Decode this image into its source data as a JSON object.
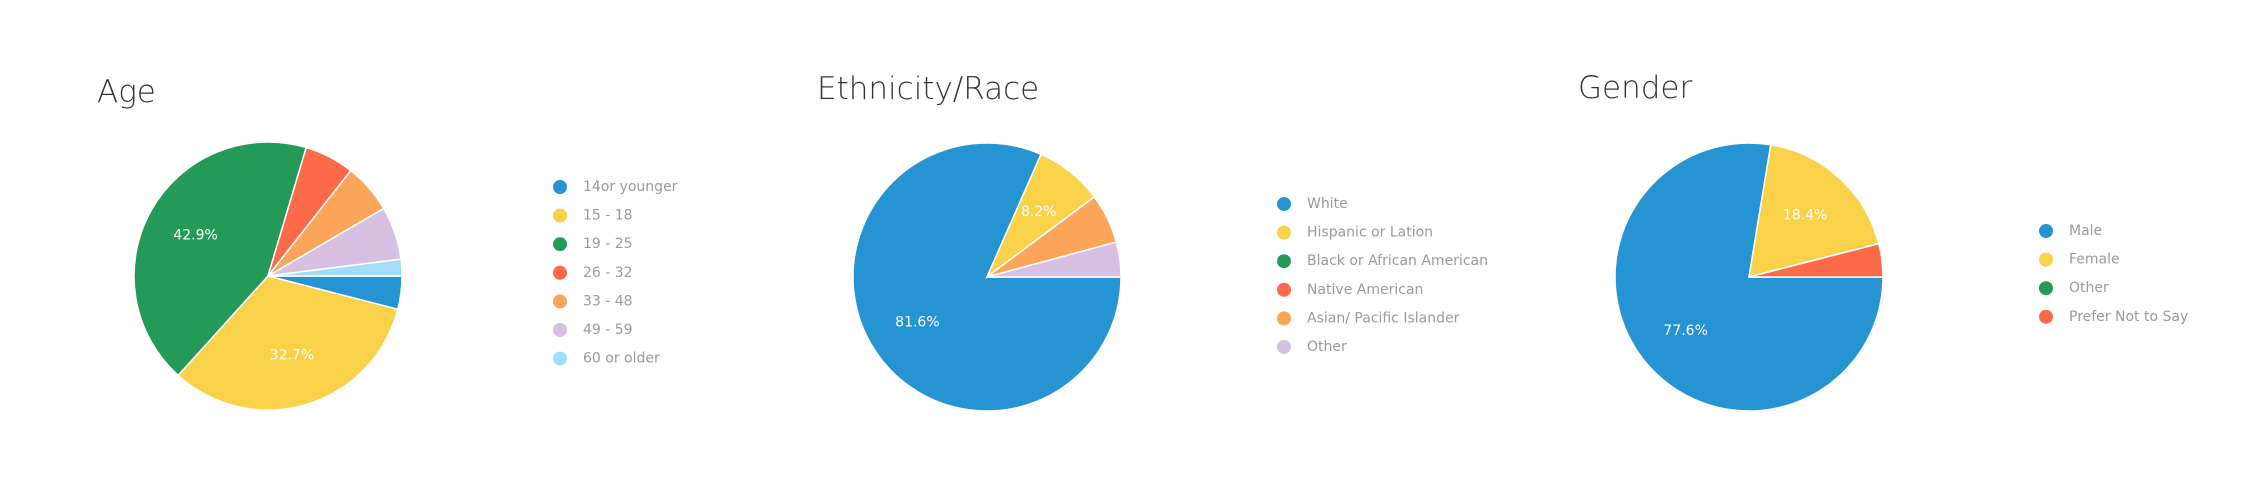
{
  "chart_data": [
    {
      "type": "pie",
      "title": "Age",
      "categories": [
        "14or younger",
        "15 - 18",
        "19 - 25",
        "26 - 32",
        "33 - 48",
        "49 - 59",
        "60 or older"
      ],
      "values": [
        4,
        32.7,
        42.9,
        6,
        6,
        6.4,
        2
      ],
      "value_labels": [
        null,
        "32.7%",
        "42.9%",
        null,
        null,
        null,
        null
      ],
      "colors": [
        "#2693d3",
        "#f9d24a",
        "#239a58",
        "#fd6a4a",
        "#fba55a",
        "#d8c0e2",
        "#a3dcf9"
      ]
    },
    {
      "type": "pie",
      "title": "Ethnicity/Race",
      "categories": [
        "White",
        "Hispanic or Lation",
        "Black or African American",
        "Native American",
        "Asian/ Pacific Islander",
        "Other"
      ],
      "values": [
        81.6,
        8.2,
        0,
        0,
        6,
        4.2
      ],
      "value_labels": [
        "81.6%",
        "8.2%",
        null,
        null,
        null,
        null
      ],
      "colors": [
        "#2693d3",
        "#f9d24a",
        "#239a58",
        "#fd6a4a",
        "#fba55a",
        "#d8c0e2"
      ]
    },
    {
      "type": "pie",
      "title": "Gender",
      "categories": [
        "Male",
        "Female",
        "Other",
        "Prefer Not to Say"
      ],
      "values": [
        77.6,
        18.4,
        0,
        4
      ],
      "value_labels": [
        "77.6%",
        "18.4%",
        null,
        null
      ],
      "colors": [
        "#2693d3",
        "#f9d24a",
        "#239a58",
        "#fd6a4a"
      ]
    }
  ]
}
